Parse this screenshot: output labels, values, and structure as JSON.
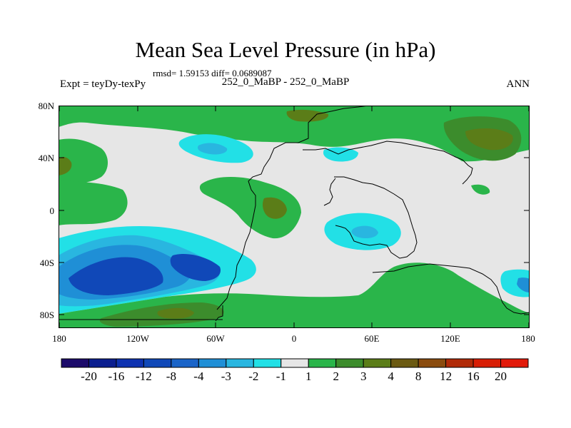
{
  "title": "Mean Sea Level Pressure (in hPa)",
  "stats": "rmsd= 1.59153 diff= 0.0689087",
  "experiment": "Expt = teyDy-texPy",
  "comparison": "252_0_MaBP - 252_0_MaBP",
  "season": "ANN",
  "latitude_labels": [
    "80N",
    "40N",
    "0",
    "40S",
    "80S"
  ],
  "longitude_labels": [
    "180",
    "120W",
    "60W",
    "0",
    "60E",
    "120E",
    "180"
  ],
  "colorbar": {
    "labels": [
      "-20",
      "-16",
      "-12",
      "-8",
      "-4",
      "-3",
      "-2",
      "-1",
      "1",
      "2",
      "3",
      "4",
      "8",
      "12",
      "16",
      "20"
    ],
    "colors": [
      "#1b0a6a",
      "#0b1e8f",
      "#0e32b0",
      "#1048b8",
      "#1a64c8",
      "#1f8fd6",
      "#29b6e0",
      "#22e0e6",
      "#e6e6e6",
      "#2ab54a",
      "#3c8c2c",
      "#5b7d18",
      "#6b5a12",
      "#8a4b0e",
      "#b02a08",
      "#d81e05",
      "#e21a0a"
    ]
  },
  "map_regions": {
    "positive_anomaly_color": "#2ab54a",
    "near_zero_color": "#e6e6e6",
    "strong_positive_color": "#5b7d18",
    "negative_color": "#22e0e6",
    "strong_negative_color": "#1048b8"
  }
}
